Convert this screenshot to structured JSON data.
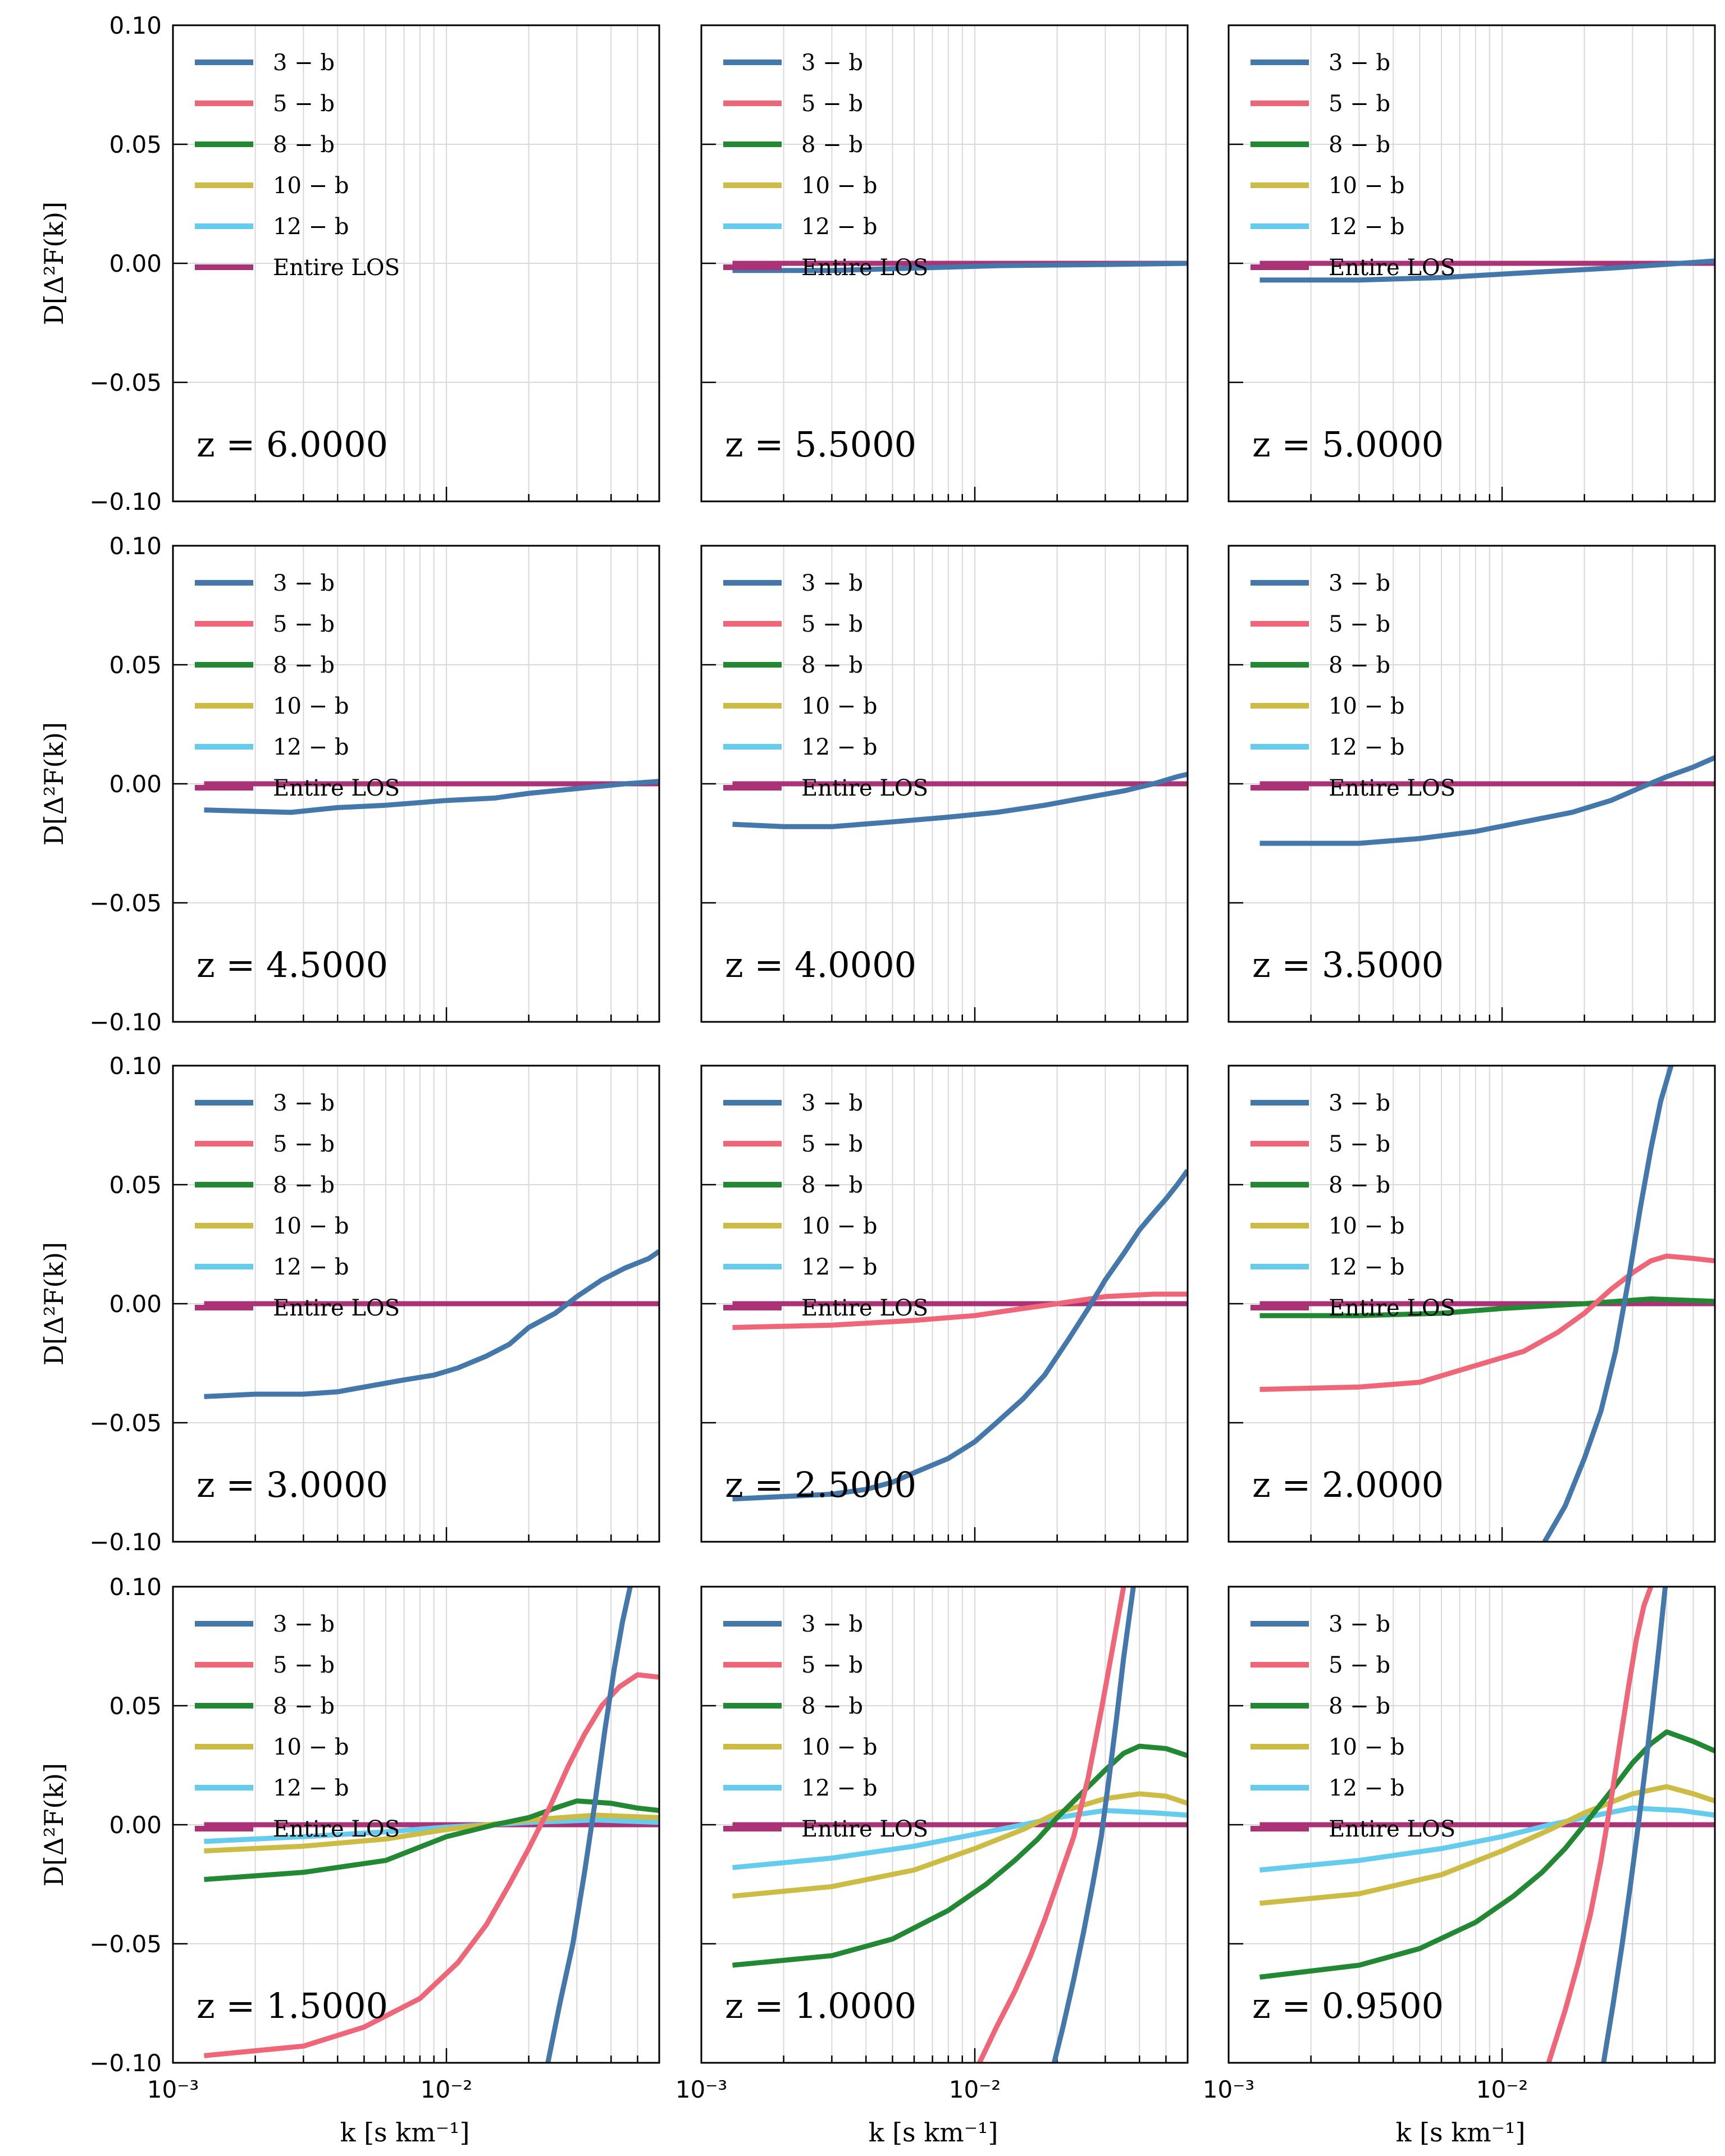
{
  "figure": {
    "y_label": "D[Δ²F(k)]",
    "x_label": "k [s km⁻¹]",
    "y_ticks": [
      "0.10",
      "0.05",
      "0.00",
      "−0.05",
      "−0.10"
    ],
    "x_ticks": [
      "10⁻³",
      "10⁻²"
    ],
    "legend": [
      "3 − b",
      "5 − b",
      "8 − b",
      "10 − b",
      "12 − b",
      "Entire LOS"
    ],
    "colors": {
      "3-b": "#4477aa",
      "5-b": "#ee6677",
      "8-b": "#228833",
      "10-b": "#ccbb44",
      "12-b": "#66ccee",
      "Entire LOS": "#aa3377"
    }
  },
  "chart_data": [
    {
      "type": "line",
      "z_label": "z = 6.0000",
      "xscale": "log",
      "xlim": [
        0.001,
        0.06
      ],
      "ylim": [
        -0.1,
        0.1
      ],
      "x_label_shown": false,
      "y_label_shown": true,
      "grid": true,
      "legend_position": "top-left",
      "series": []
    },
    {
      "type": "line",
      "z_label": "z = 5.5000",
      "xscale": "log",
      "xlim": [
        0.001,
        0.06
      ],
      "ylim": [
        -0.1,
        0.1
      ],
      "x_label_shown": false,
      "y_label_shown": false,
      "grid": true,
      "legend_position": "top-left",
      "series": [
        {
          "key": "Entire LOS",
          "x": [
            0.0013,
            0.06
          ],
          "y": [
            0.0,
            0.0
          ]
        },
        {
          "key": "3-b",
          "x": [
            0.0013,
            0.003,
            0.006,
            0.012,
            0.03,
            0.06
          ],
          "y": [
            -0.003,
            -0.003,
            -0.002,
            -0.001,
            -0.0005,
            0.0
          ]
        }
      ]
    },
    {
      "type": "line",
      "z_label": "z = 5.0000",
      "xscale": "log",
      "xlim": [
        0.001,
        0.06
      ],
      "ylim": [
        -0.1,
        0.1
      ],
      "x_label_shown": false,
      "y_label_shown": false,
      "grid": true,
      "legend_position": "top-left",
      "series": [
        {
          "key": "Entire LOS",
          "x": [
            0.0013,
            0.06
          ],
          "y": [
            0.0,
            0.0
          ]
        },
        {
          "key": "3-b",
          "x": [
            0.0013,
            0.003,
            0.006,
            0.012,
            0.025,
            0.045,
            0.06
          ],
          "y": [
            -0.007,
            -0.007,
            -0.006,
            -0.004,
            -0.002,
            0.0,
            0.001
          ]
        }
      ]
    },
    {
      "type": "line",
      "z_label": "z = 4.5000",
      "xscale": "log",
      "xlim": [
        0.001,
        0.06
      ],
      "ylim": [
        -0.1,
        0.1
      ],
      "x_label_shown": false,
      "y_label_shown": true,
      "grid": true,
      "legend_position": "top-left",
      "series": [
        {
          "key": "Entire LOS",
          "x": [
            0.0013,
            0.06
          ],
          "y": [
            0.0,
            0.0
          ]
        },
        {
          "key": "3-b",
          "x": [
            0.0013,
            0.0027,
            0.004,
            0.006,
            0.01,
            0.015,
            0.02,
            0.03,
            0.045,
            0.06
          ],
          "y": [
            -0.011,
            -0.012,
            -0.01,
            -0.009,
            -0.007,
            -0.006,
            -0.004,
            -0.002,
            0.0,
            0.001
          ]
        }
      ]
    },
    {
      "type": "line",
      "z_label": "z = 4.0000",
      "xscale": "log",
      "xlim": [
        0.001,
        0.06
      ],
      "ylim": [
        -0.1,
        0.1
      ],
      "x_label_shown": false,
      "y_label_shown": false,
      "grid": true,
      "legend_position": "top-left",
      "series": [
        {
          "key": "Entire LOS",
          "x": [
            0.0013,
            0.06
          ],
          "y": [
            0.0,
            0.0
          ]
        },
        {
          "key": "3-b",
          "x": [
            0.0013,
            0.002,
            0.003,
            0.005,
            0.008,
            0.012,
            0.018,
            0.025,
            0.035,
            0.045,
            0.055,
            0.06
          ],
          "y": [
            -0.017,
            -0.018,
            -0.018,
            -0.016,
            -0.014,
            -0.012,
            -0.009,
            -0.006,
            -0.003,
            0.0,
            0.003,
            0.004
          ]
        }
      ]
    },
    {
      "type": "line",
      "z_label": "z = 3.5000",
      "xscale": "log",
      "xlim": [
        0.001,
        0.06
      ],
      "ylim": [
        -0.1,
        0.1
      ],
      "x_label_shown": false,
      "y_label_shown": false,
      "grid": true,
      "legend_position": "top-left",
      "series": [
        {
          "key": "Entire LOS",
          "x": [
            0.0013,
            0.06
          ],
          "y": [
            0.0,
            0.0
          ]
        },
        {
          "key": "3-b",
          "x": [
            0.0013,
            0.002,
            0.003,
            0.005,
            0.008,
            0.012,
            0.018,
            0.025,
            0.033,
            0.04,
            0.05,
            0.06
          ],
          "y": [
            -0.025,
            -0.025,
            -0.025,
            -0.023,
            -0.02,
            -0.016,
            -0.012,
            -0.007,
            -0.001,
            0.003,
            0.007,
            0.011
          ]
        }
      ]
    },
    {
      "type": "line",
      "z_label": "z = 3.0000",
      "xscale": "log",
      "xlim": [
        0.001,
        0.06
      ],
      "ylim": [
        -0.1,
        0.1
      ],
      "x_label_shown": false,
      "y_label_shown": true,
      "grid": true,
      "legend_position": "top-left",
      "series": [
        {
          "key": "Entire LOS",
          "x": [
            0.0013,
            0.06
          ],
          "y": [
            0.0,
            0.0
          ]
        },
        {
          "key": "3-b",
          "x": [
            0.0013,
            0.002,
            0.003,
            0.004,
            0.005,
            0.007,
            0.009,
            0.011,
            0.014,
            0.017,
            0.02,
            0.025,
            0.03,
            0.037,
            0.045,
            0.055,
            0.06
          ],
          "y": [
            -0.039,
            -0.038,
            -0.038,
            -0.037,
            -0.035,
            -0.032,
            -0.03,
            -0.027,
            -0.022,
            -0.017,
            -0.01,
            -0.004,
            0.003,
            0.01,
            0.015,
            0.019,
            0.022
          ]
        }
      ]
    },
    {
      "type": "line",
      "z_label": "z = 2.5000",
      "xscale": "log",
      "xlim": [
        0.001,
        0.06
      ],
      "ylim": [
        -0.1,
        0.1
      ],
      "x_label_shown": false,
      "y_label_shown": false,
      "grid": true,
      "legend_position": "top-left",
      "series": [
        {
          "key": "Entire LOS",
          "x": [
            0.0013,
            0.06
          ],
          "y": [
            0.0,
            0.0
          ]
        },
        {
          "key": "5-b",
          "x": [
            0.0013,
            0.003,
            0.006,
            0.01,
            0.015,
            0.02,
            0.03,
            0.045,
            0.06
          ],
          "y": [
            -0.01,
            -0.009,
            -0.007,
            -0.005,
            -0.002,
            0.0,
            0.003,
            0.004,
            0.004
          ]
        },
        {
          "key": "3-b",
          "x": [
            0.0013,
            0.002,
            0.003,
            0.004,
            0.005,
            0.006,
            0.008,
            0.01,
            0.012,
            0.015,
            0.018,
            0.022,
            0.026,
            0.03,
            0.035,
            0.04,
            0.045,
            0.05,
            0.055,
            0.06
          ],
          "y": [
            -0.082,
            -0.081,
            -0.08,
            -0.078,
            -0.075,
            -0.071,
            -0.065,
            -0.058,
            -0.05,
            -0.04,
            -0.03,
            -0.015,
            -0.002,
            0.01,
            0.021,
            0.031,
            0.038,
            0.044,
            0.05,
            0.056
          ]
        }
      ]
    },
    {
      "type": "line",
      "z_label": "z = 2.0000",
      "xscale": "log",
      "xlim": [
        0.001,
        0.06
      ],
      "ylim": [
        -0.1,
        0.1
      ],
      "x_label_shown": false,
      "y_label_shown": false,
      "grid": true,
      "legend_position": "top-left",
      "series": [
        {
          "key": "Entire LOS",
          "x": [
            0.0013,
            0.06
          ],
          "y": [
            0.0,
            0.0
          ]
        },
        {
          "key": "8-b",
          "x": [
            0.0013,
            0.003,
            0.006,
            0.01,
            0.02,
            0.035,
            0.06
          ],
          "y": [
            -0.005,
            -0.005,
            -0.004,
            -0.002,
            0.0,
            0.002,
            0.001
          ]
        },
        {
          "key": "5-b",
          "x": [
            0.0013,
            0.003,
            0.005,
            0.008,
            0.012,
            0.016,
            0.02,
            0.025,
            0.03,
            0.035,
            0.04,
            0.05,
            0.06
          ],
          "y": [
            -0.036,
            -0.035,
            -0.033,
            -0.026,
            -0.02,
            -0.012,
            -0.004,
            0.006,
            0.013,
            0.018,
            0.02,
            0.019,
            0.018
          ]
        },
        {
          "key": "3-b",
          "x": [
            0.0143,
            0.017,
            0.02,
            0.023,
            0.026,
            0.029,
            0.032,
            0.035,
            0.038,
            0.0415
          ],
          "y": [
            -0.1,
            -0.085,
            -0.065,
            -0.045,
            -0.02,
            0.01,
            0.04,
            0.065,
            0.085,
            0.1
          ]
        }
      ]
    },
    {
      "type": "line",
      "z_label": "z = 1.5000",
      "xscale": "log",
      "xlim": [
        0.001,
        0.06
      ],
      "ylim": [
        -0.1,
        0.1
      ],
      "x_label_shown": true,
      "y_label_shown": true,
      "grid": true,
      "legend_position": "top-left",
      "series": [
        {
          "key": "Entire LOS",
          "x": [
            0.0013,
            0.06
          ],
          "y": [
            0.0,
            0.0
          ]
        },
        {
          "key": "12-b",
          "x": [
            0.0013,
            0.003,
            0.006,
            0.01,
            0.02,
            0.035,
            0.06
          ],
          "y": [
            -0.007,
            -0.005,
            -0.003,
            -0.001,
            0.001,
            0.002,
            0.001
          ]
        },
        {
          "key": "10-b",
          "x": [
            0.0013,
            0.003,
            0.006,
            0.01,
            0.02,
            0.035,
            0.06
          ],
          "y": [
            -0.011,
            -0.009,
            -0.006,
            -0.002,
            0.002,
            0.004,
            0.003
          ]
        },
        {
          "key": "8-b",
          "x": [
            0.0013,
            0.003,
            0.006,
            0.01,
            0.015,
            0.02,
            0.025,
            0.03,
            0.04,
            0.05,
            0.06
          ],
          "y": [
            -0.023,
            -0.02,
            -0.015,
            -0.005,
            0.0,
            0.003,
            0.007,
            0.01,
            0.009,
            0.007,
            0.006
          ]
        },
        {
          "key": "5-b",
          "x": [
            0.0013,
            0.003,
            0.005,
            0.008,
            0.011,
            0.014,
            0.017,
            0.02,
            0.024,
            0.028,
            0.032,
            0.037,
            0.043,
            0.05,
            0.06
          ],
          "y": [
            -0.097,
            -0.093,
            -0.085,
            -0.073,
            -0.058,
            -0.042,
            -0.025,
            -0.01,
            0.008,
            0.025,
            0.038,
            0.05,
            0.058,
            0.063,
            0.062
          ]
        },
        {
          "key": "3-b",
          "x": [
            0.0235,
            0.026,
            0.029,
            0.032,
            0.035,
            0.038,
            0.041,
            0.044,
            0.047
          ],
          "y": [
            -0.1,
            -0.075,
            -0.05,
            -0.02,
            0.01,
            0.04,
            0.065,
            0.085,
            0.1
          ]
        }
      ]
    },
    {
      "type": "line",
      "z_label": "z = 1.0000",
      "xscale": "log",
      "xlim": [
        0.001,
        0.06
      ],
      "ylim": [
        -0.1,
        0.1
      ],
      "x_label_shown": true,
      "y_label_shown": false,
      "grid": true,
      "legend_position": "top-left",
      "series": [
        {
          "key": "Entire LOS",
          "x": [
            0.0013,
            0.06
          ],
          "y": [
            0.0,
            0.0
          ]
        },
        {
          "key": "12-b",
          "x": [
            0.0013,
            0.003,
            0.006,
            0.01,
            0.015,
            0.02,
            0.03,
            0.045,
            0.06
          ],
          "y": [
            -0.018,
            -0.014,
            -0.009,
            -0.004,
            0.0,
            0.003,
            0.006,
            0.005,
            0.004
          ]
        },
        {
          "key": "10-b",
          "x": [
            0.0013,
            0.003,
            0.006,
            0.01,
            0.015,
            0.02,
            0.03,
            0.04,
            0.05,
            0.06
          ],
          "y": [
            -0.03,
            -0.026,
            -0.019,
            -0.01,
            -0.002,
            0.005,
            0.011,
            0.013,
            0.012,
            0.009
          ]
        },
        {
          "key": "8-b",
          "x": [
            0.0013,
            0.003,
            0.005,
            0.008,
            0.011,
            0.014,
            0.017,
            0.02,
            0.025,
            0.03,
            0.035,
            0.04,
            0.05,
            0.06
          ],
          "y": [
            -0.059,
            -0.055,
            -0.048,
            -0.036,
            -0.025,
            -0.015,
            -0.006,
            0.003,
            0.014,
            0.023,
            0.03,
            0.033,
            0.032,
            0.029
          ]
        },
        {
          "key": "5-b",
          "x": [
            0.0104,
            0.012,
            0.014,
            0.016,
            0.018,
            0.02,
            0.023,
            0.026,
            0.029,
            0.032,
            0.035
          ],
          "y": [
            -0.1,
            -0.085,
            -0.07,
            -0.055,
            -0.04,
            -0.025,
            -0.005,
            0.02,
            0.048,
            0.075,
            0.1
          ]
        },
        {
          "key": "3-b",
          "x": [
            0.0195,
            0.021,
            0.023,
            0.025,
            0.027,
            0.029,
            0.031,
            0.033,
            0.035,
            0.038
          ],
          "y": [
            -0.1,
            -0.085,
            -0.065,
            -0.045,
            -0.025,
            -0.005,
            0.02,
            0.045,
            0.07,
            0.1
          ]
        }
      ]
    },
    {
      "type": "line",
      "z_label": "z = 0.9500",
      "xscale": "log",
      "xlim": [
        0.001,
        0.06
      ],
      "ylim": [
        -0.1,
        0.1
      ],
      "x_label_shown": true,
      "y_label_shown": false,
      "grid": true,
      "legend_position": "top-left",
      "series": [
        {
          "key": "Entire LOS",
          "x": [
            0.0013,
            0.06
          ],
          "y": [
            0.0,
            0.0
          ]
        },
        {
          "key": "12-b",
          "x": [
            0.0013,
            0.003,
            0.006,
            0.01,
            0.015,
            0.02,
            0.03,
            0.045,
            0.06
          ],
          "y": [
            -0.019,
            -0.015,
            -0.01,
            -0.005,
            0.0,
            0.003,
            0.007,
            0.006,
            0.004
          ]
        },
        {
          "key": "10-b",
          "x": [
            0.0013,
            0.003,
            0.006,
            0.01,
            0.015,
            0.02,
            0.03,
            0.04,
            0.05,
            0.06
          ],
          "y": [
            -0.033,
            -0.029,
            -0.021,
            -0.011,
            -0.002,
            0.005,
            0.013,
            0.016,
            0.013,
            0.01
          ]
        },
        {
          "key": "8-b",
          "x": [
            0.0013,
            0.003,
            0.005,
            0.008,
            0.011,
            0.014,
            0.017,
            0.02,
            0.025,
            0.03,
            0.035,
            0.04,
            0.05,
            0.06
          ],
          "y": [
            -0.064,
            -0.059,
            -0.052,
            -0.041,
            -0.03,
            -0.02,
            -0.01,
            0.0,
            0.014,
            0.026,
            0.034,
            0.039,
            0.035,
            0.031
          ]
        },
        {
          "key": "5-b",
          "x": [
            0.0148,
            0.017,
            0.019,
            0.021,
            0.023,
            0.025,
            0.027,
            0.029,
            0.031,
            0.033,
            0.035
          ],
          "y": [
            -0.1,
            -0.078,
            -0.058,
            -0.038,
            -0.015,
            0.01,
            0.035,
            0.058,
            0.078,
            0.092,
            0.1
          ]
        },
        {
          "key": "3-b",
          "x": [
            0.0235,
            0.0255,
            0.0275,
            0.0295,
            0.0315,
            0.0335,
            0.0355,
            0.0375,
            0.0395
          ],
          "y": [
            -0.1,
            -0.075,
            -0.05,
            -0.025,
            0.0,
            0.025,
            0.05,
            0.075,
            0.1
          ]
        }
      ]
    }
  ]
}
